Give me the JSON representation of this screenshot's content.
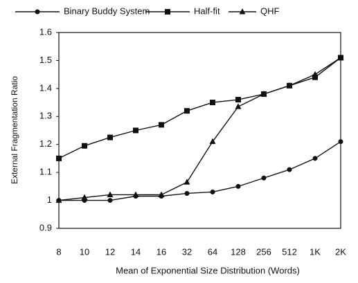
{
  "chart_data": {
    "type": "line",
    "x_label": "Mean of Exponential Size Distribution (Words)",
    "y_label": "External Fragmentation Ratio",
    "categories": [
      "8",
      "10",
      "12",
      "14",
      "16",
      "32",
      "64",
      "128",
      "256",
      "512",
      "1K",
      "2K"
    ],
    "series": [
      {
        "name": "Binary Buddy System",
        "color": "#111111",
        "marker": "circle",
        "values": [
          1.0,
          1.0,
          1.0,
          1.015,
          1.015,
          1.025,
          1.03,
          1.05,
          1.08,
          1.11,
          1.15,
          1.21
        ]
      },
      {
        "name": "Half-fit",
        "color": "#111111",
        "marker": "square",
        "values": [
          1.15,
          1.195,
          1.225,
          1.25,
          1.27,
          1.32,
          1.35,
          1.36,
          1.38,
          1.41,
          1.44,
          1.51
        ]
      },
      {
        "name": "QHF",
        "color": "#111111",
        "marker": "triangle",
        "values": [
          1.0,
          1.01,
          1.02,
          1.02,
          1.02,
          1.065,
          1.21,
          1.335,
          1.38,
          1.41,
          1.45,
          1.51
        ]
      }
    ],
    "ylim": [
      0.9,
      1.6
    ],
    "yticks": [
      0.9,
      1,
      1.1,
      1.2,
      1.3,
      1.4,
      1.5,
      1.6
    ],
    "legend": "top"
  }
}
